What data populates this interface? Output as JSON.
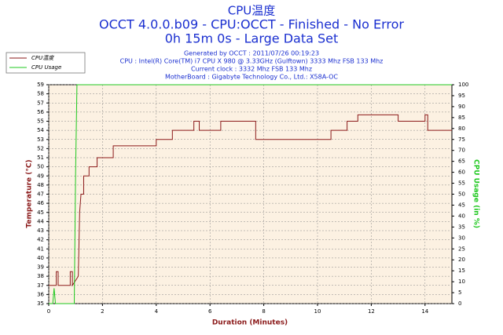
{
  "chart_data": {
    "type": "line",
    "title": "CPU温度",
    "subtitle": [
      "OCCT 4.0.0.b09 - CPU:OCCT - Finished - No Error",
      "0h 15m 0s - Large Data Set"
    ],
    "info": [
      "Generated by OCCT : 2011/07/26 00:19:23",
      "CPU : Intel(R) Core(TM) i7 CPU X 980 @ 3.33GHz (Gulftown) 3333 Mhz FSB 133 Mhz",
      "Current clock : 3332 Mhz FSB 133 Mhz",
      "MotherBoard : Gigabyte Technology Co., Ltd.: X58A-OC"
    ],
    "xlabel": "Duration (Minutes)",
    "ylabel": "Temperature (°C)",
    "y2label": "CPU Usage (in %)",
    "xlim": [
      0,
      15
    ],
    "xticks": [
      0,
      2,
      4,
      6,
      8,
      10,
      12,
      14
    ],
    "ylim": [
      35,
      59
    ],
    "yticks": [
      35,
      36,
      37,
      38,
      39,
      40,
      41,
      42,
      43,
      44,
      45,
      46,
      47,
      48,
      49,
      50,
      51,
      52,
      53,
      54,
      55,
      56,
      57,
      58,
      59
    ],
    "y2lim": [
      0,
      100
    ],
    "y2ticks": [
      0,
      5,
      10,
      15,
      20,
      25,
      30,
      35,
      40,
      45,
      50,
      55,
      60,
      65,
      70,
      75,
      80,
      85,
      90,
      95,
      100
    ],
    "grid": true,
    "legend": "top-left",
    "series": [
      {
        "name": "CPU温度",
        "color": "#8b1a1a",
        "x": [
          0,
          0.28,
          0.28,
          0.35,
          0.35,
          0.8,
          0.8,
          0.88,
          0.88,
          1.1,
          1.15,
          1.2,
          1.3,
          1.3,
          1.5,
          1.5,
          1.8,
          1.8,
          2.4,
          2.4,
          4.0,
          4.0,
          4.4,
          4.4,
          4.6,
          4.6,
          5.4,
          5.4,
          5.6,
          5.6,
          6.4,
          6.4,
          7.7,
          7.7,
          10.5,
          10.5,
          11.1,
          11.1,
          11.5,
          11.5,
          13.0,
          13.0,
          14.0,
          14.0,
          14.1,
          14.1,
          15
        ],
        "values": [
          37,
          37,
          38.5,
          38.5,
          37,
          37,
          38.5,
          38.5,
          37,
          38,
          45,
          47,
          47,
          49,
          49,
          50,
          50,
          51,
          51,
          52.3,
          52.3,
          53,
          53,
          53,
          53,
          54,
          54,
          55,
          55,
          54,
          54,
          55,
          55,
          53,
          53,
          54,
          54,
          55,
          55,
          55.7,
          55.7,
          55,
          55,
          55.7,
          55.7,
          54,
          54
        ]
      },
      {
        "name": "CPU Usage",
        "color": "#1fc81f",
        "axis": "y2",
        "x": [
          0,
          0.15,
          0.2,
          0.25,
          0.3,
          0.95,
          1.0,
          1.05,
          15
        ],
        "values": [
          0,
          0,
          7,
          0,
          0,
          0,
          60,
          100,
          100
        ]
      }
    ]
  }
}
